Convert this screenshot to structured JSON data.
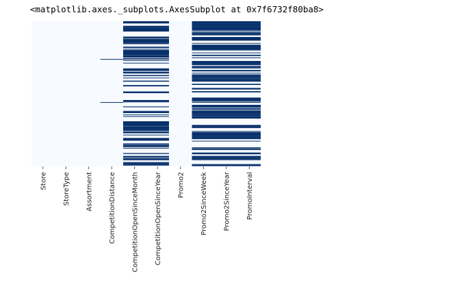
{
  "output_text": "<matplotlib.axes._subplots.AxesSubplot at 0x7f6732f80ba8>",
  "chart_data": {
    "type": "heatmap",
    "title": "",
    "xlabel": "",
    "ylabel": "",
    "columns": [
      "Store",
      "StoreType",
      "Assortment",
      "CompetitionDistance",
      "CompetitionOpenSinceMonth",
      "CompetitionOpenSinceYear",
      "Promo2",
      "Promo2SinceWeek",
      "Promo2SinceYear",
      "PromoInterval"
    ],
    "n_rows": 1115,
    "value_meaning": "missing (isnull) = dark blue, present = near white",
    "colors": {
      "present": "#f7fbff",
      "missing": "#08306b"
    },
    "colorbar": false,
    "missing_rows": {
      "CompetitionDistance": [
        290,
        621
      ],
      "CompetitionOpenSinceMonth": "pattern_A",
      "CompetitionOpenSinceYear": "pattern_A",
      "Promo2SinceWeek": "pattern_B",
      "Promo2SinceYear": "pattern_B",
      "PromoInterval": "pattern_B"
    }
  }
}
